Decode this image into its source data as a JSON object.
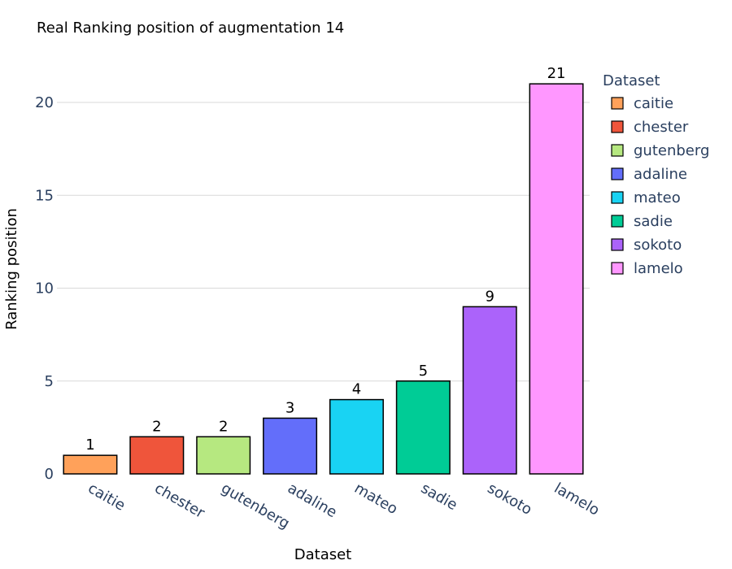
{
  "chart_data": {
    "type": "bar",
    "title": "Real Ranking position of augmentation 14",
    "xlabel": "Dataset",
    "ylabel": "Ranking position",
    "categories": [
      "caitie",
      "chester",
      "gutenberg",
      "adaline",
      "mateo",
      "sadie",
      "sokoto",
      "lamelo"
    ],
    "values": [
      1,
      2,
      2,
      3,
      4,
      5,
      9,
      21
    ],
    "colors": [
      "#ffa15a",
      "#ef553b",
      "#b6e880",
      "#636efa",
      "#19d3f3",
      "#00cc96",
      "#ab63fa",
      "#ff97ff"
    ],
    "yticks": [
      0,
      5,
      10,
      15,
      20
    ],
    "ylim": [
      0,
      22.1
    ],
    "grid": true,
    "legend": {
      "title": "Dataset",
      "placement": "top-right",
      "items": [
        "caitie",
        "chester",
        "gutenberg",
        "adaline",
        "mateo",
        "sadie",
        "sokoto",
        "lamelo"
      ]
    }
  }
}
